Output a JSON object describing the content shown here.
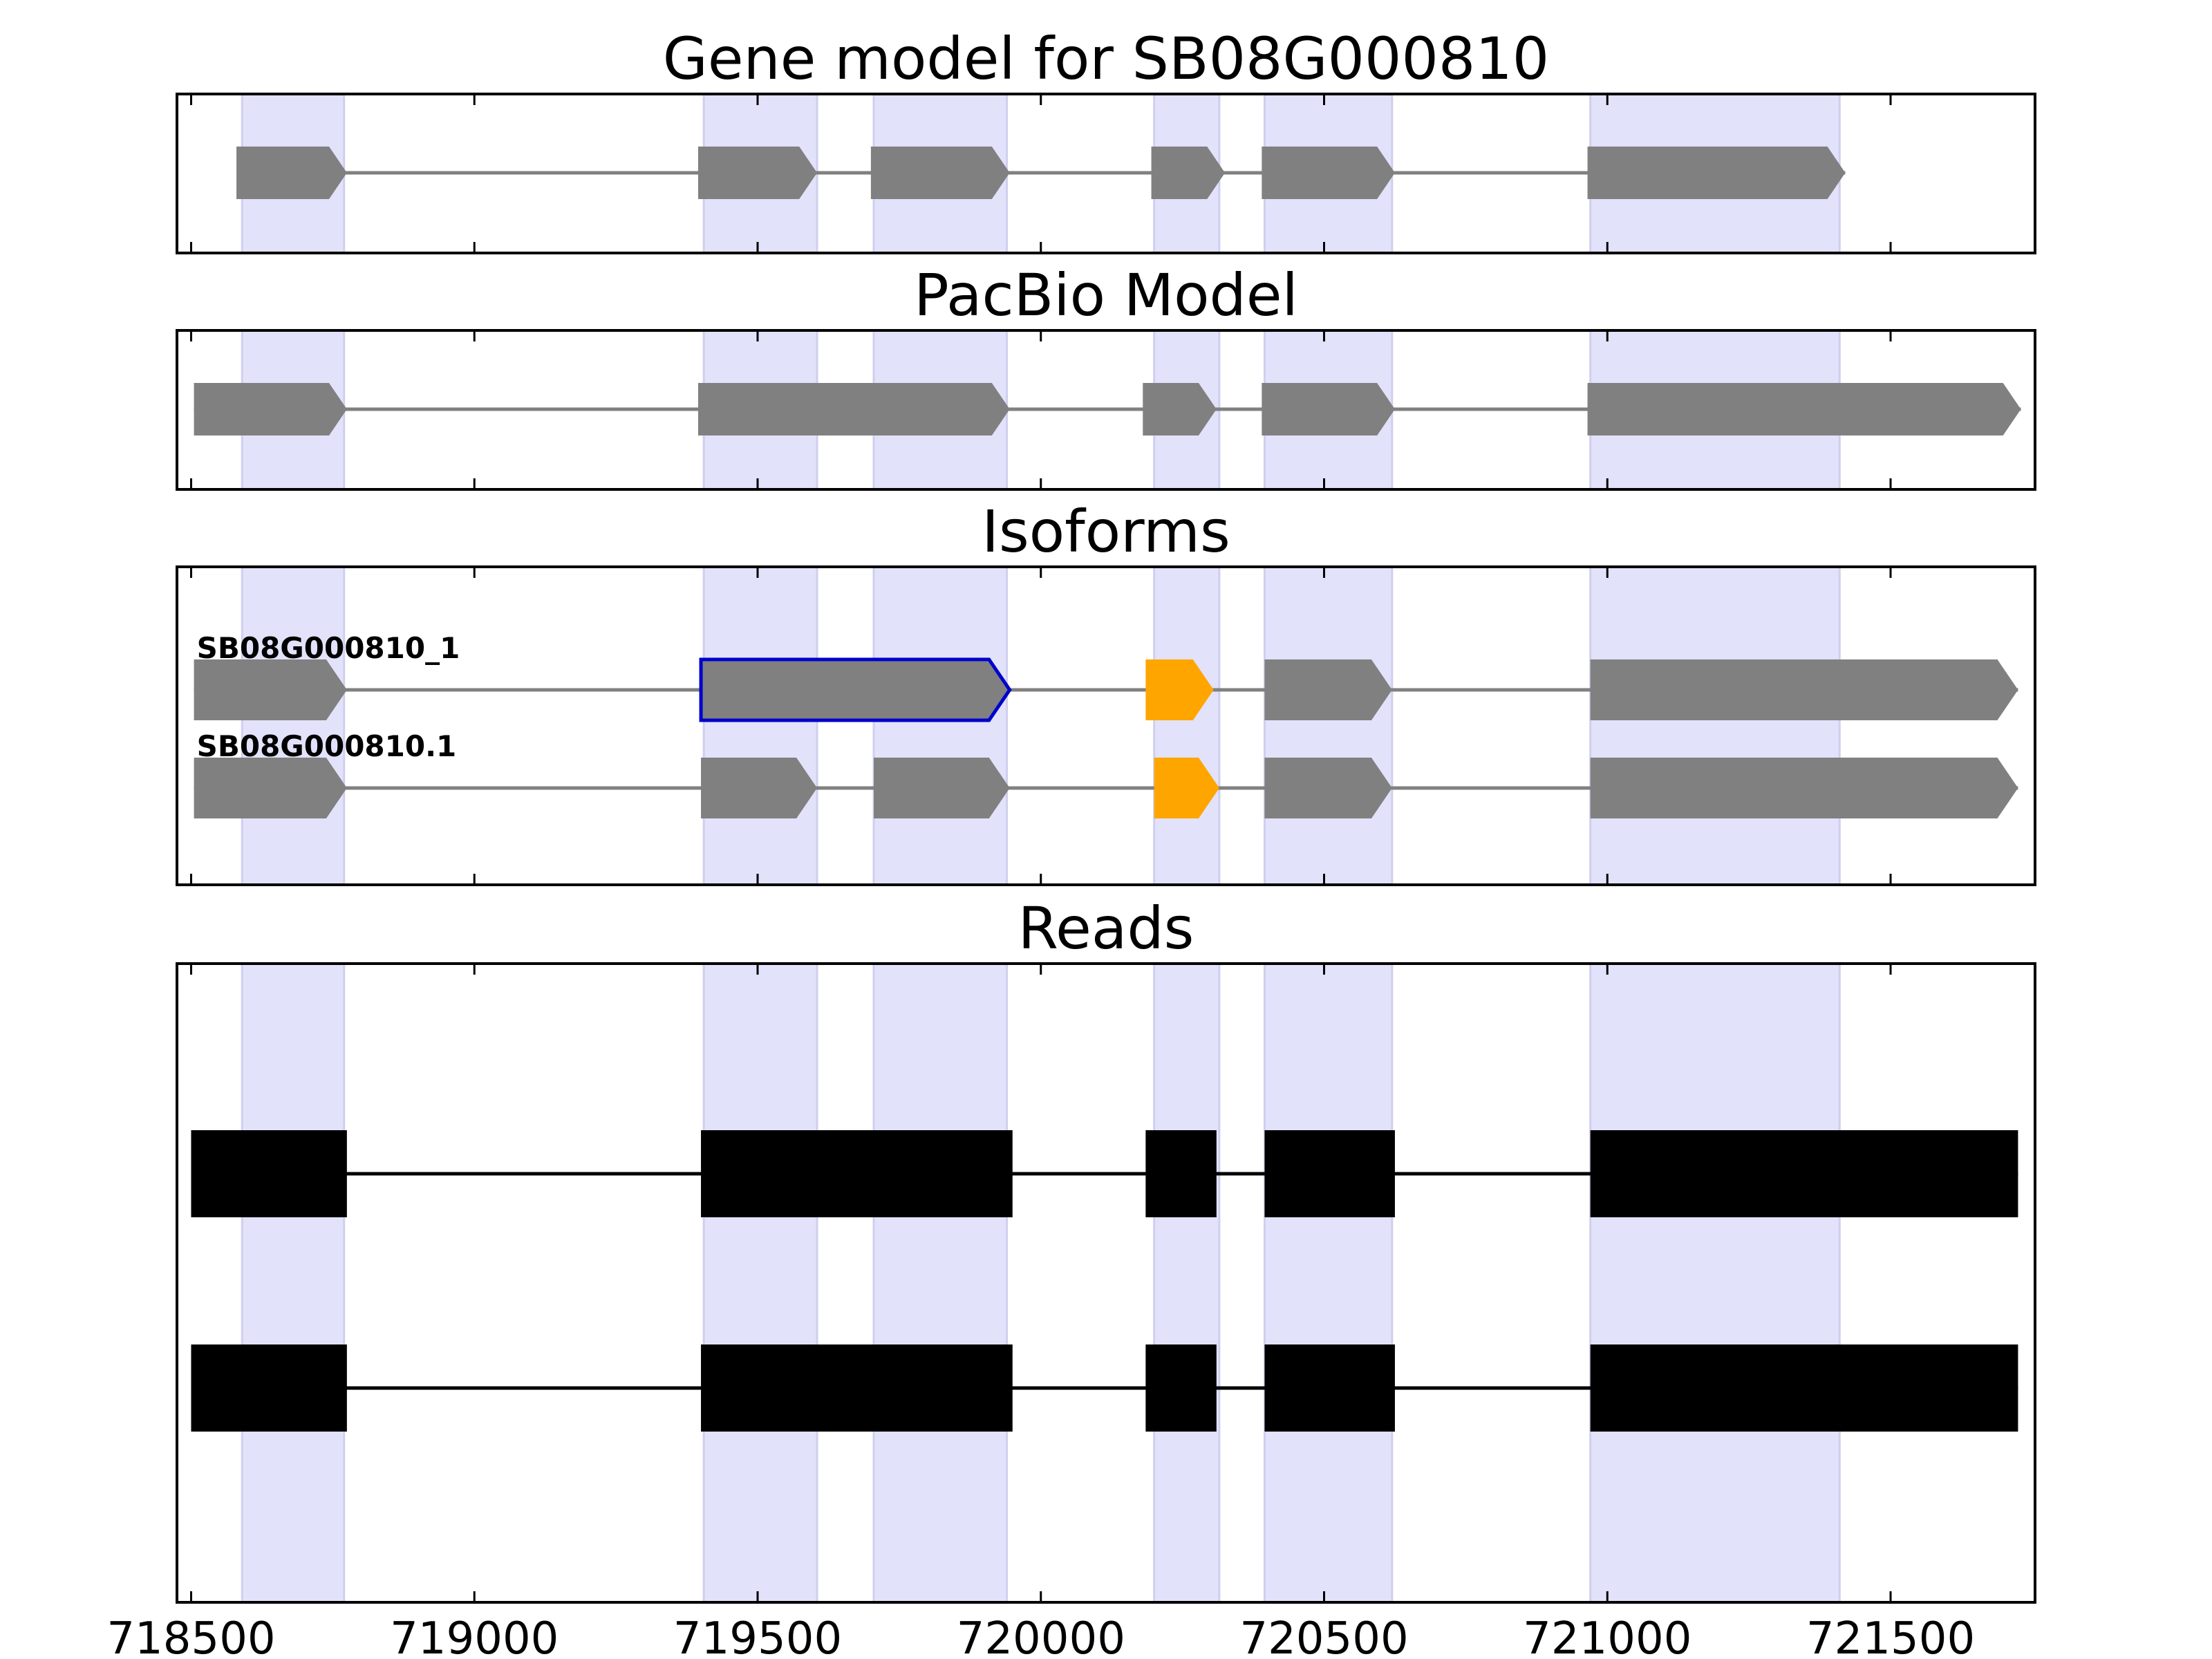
{
  "figure": {
    "xlim": [
      718475,
      721755
    ],
    "xticks": [
      718500,
      719000,
      719500,
      720000,
      720500,
      721000,
      721500
    ],
    "colors": {
      "shade": "#e2e2fa",
      "shade_edge": "#cfcfef",
      "feature": "#808080",
      "feature_highlight": "#ffa500",
      "selected_outline": "#0000cc",
      "read": "#000000",
      "intron": "#808080",
      "frame": "#000000"
    }
  },
  "chart_data": [
    {
      "type": "gene_model",
      "title": "Gene model for SB08G000810",
      "shaded_regions": [
        [
          718590,
          718770
        ],
        [
          719405,
          719605
        ],
        [
          719705,
          719940
        ],
        [
          720200,
          720315
        ],
        [
          720395,
          720620
        ],
        [
          720970,
          721410
        ]
      ],
      "tracks": [
        {
          "label": "",
          "exons": [
            [
              718580,
              718775
            ],
            [
              719395,
              719605
            ],
            [
              719700,
              719945
            ],
            [
              720195,
              720325
            ],
            [
              720390,
              720625
            ],
            [
              720965,
              721420
            ]
          ]
        }
      ]
    },
    {
      "type": "gene_model",
      "title": "PacBio Model",
      "shaded_regions": [
        [
          718590,
          718770
        ],
        [
          719405,
          719605
        ],
        [
          719705,
          719940
        ],
        [
          720200,
          720315
        ],
        [
          720395,
          720620
        ],
        [
          720970,
          721410
        ]
      ],
      "tracks": [
        {
          "label": "",
          "exons": [
            [
              718505,
              718775
            ],
            [
              719395,
              719945
            ],
            [
              720180,
              720310
            ],
            [
              720390,
              720625
            ],
            [
              720965,
              721730
            ]
          ]
        }
      ]
    },
    {
      "type": "gene_model",
      "title": "Isoforms",
      "shaded_regions": [
        [
          718590,
          718770
        ],
        [
          719405,
          719605
        ],
        [
          719705,
          719940
        ],
        [
          720200,
          720315
        ],
        [
          720395,
          720620
        ],
        [
          720970,
          721410
        ]
      ],
      "tracks": [
        {
          "label": "SB08G000810_1",
          "exons": [
            [
              718505,
              718775
            ],
            [
              719400,
              719945,
              "selected"
            ],
            [
              720185,
              720305,
              "highlight"
            ],
            [
              720395,
              720620
            ],
            [
              720970,
              721725
            ]
          ]
        },
        {
          "label": "SB08G000810.1",
          "exons": [
            [
              718505,
              718775
            ],
            [
              719400,
              719605
            ],
            [
              719705,
              719945
            ],
            [
              720200,
              720315,
              "highlight"
            ],
            [
              720395,
              720620
            ],
            [
              720970,
              721725
            ]
          ]
        }
      ]
    },
    {
      "type": "reads",
      "title": "Reads",
      "shaded_regions": [
        [
          718590,
          718770
        ],
        [
          719405,
          719605
        ],
        [
          719705,
          719940
        ],
        [
          720200,
          720315
        ],
        [
          720395,
          720620
        ],
        [
          720970,
          721410
        ]
      ],
      "reads": [
        {
          "blocks": [
            [
              718500,
              718775
            ],
            [
              719400,
              719950
            ],
            [
              720185,
              720310
            ],
            [
              720395,
              720625
            ],
            [
              720970,
              721725
            ]
          ]
        },
        {
          "blocks": [
            [
              718500,
              718775
            ],
            [
              719400,
              719950
            ],
            [
              720185,
              720310
            ],
            [
              720395,
              720625
            ],
            [
              720970,
              721725
            ]
          ]
        }
      ]
    }
  ]
}
